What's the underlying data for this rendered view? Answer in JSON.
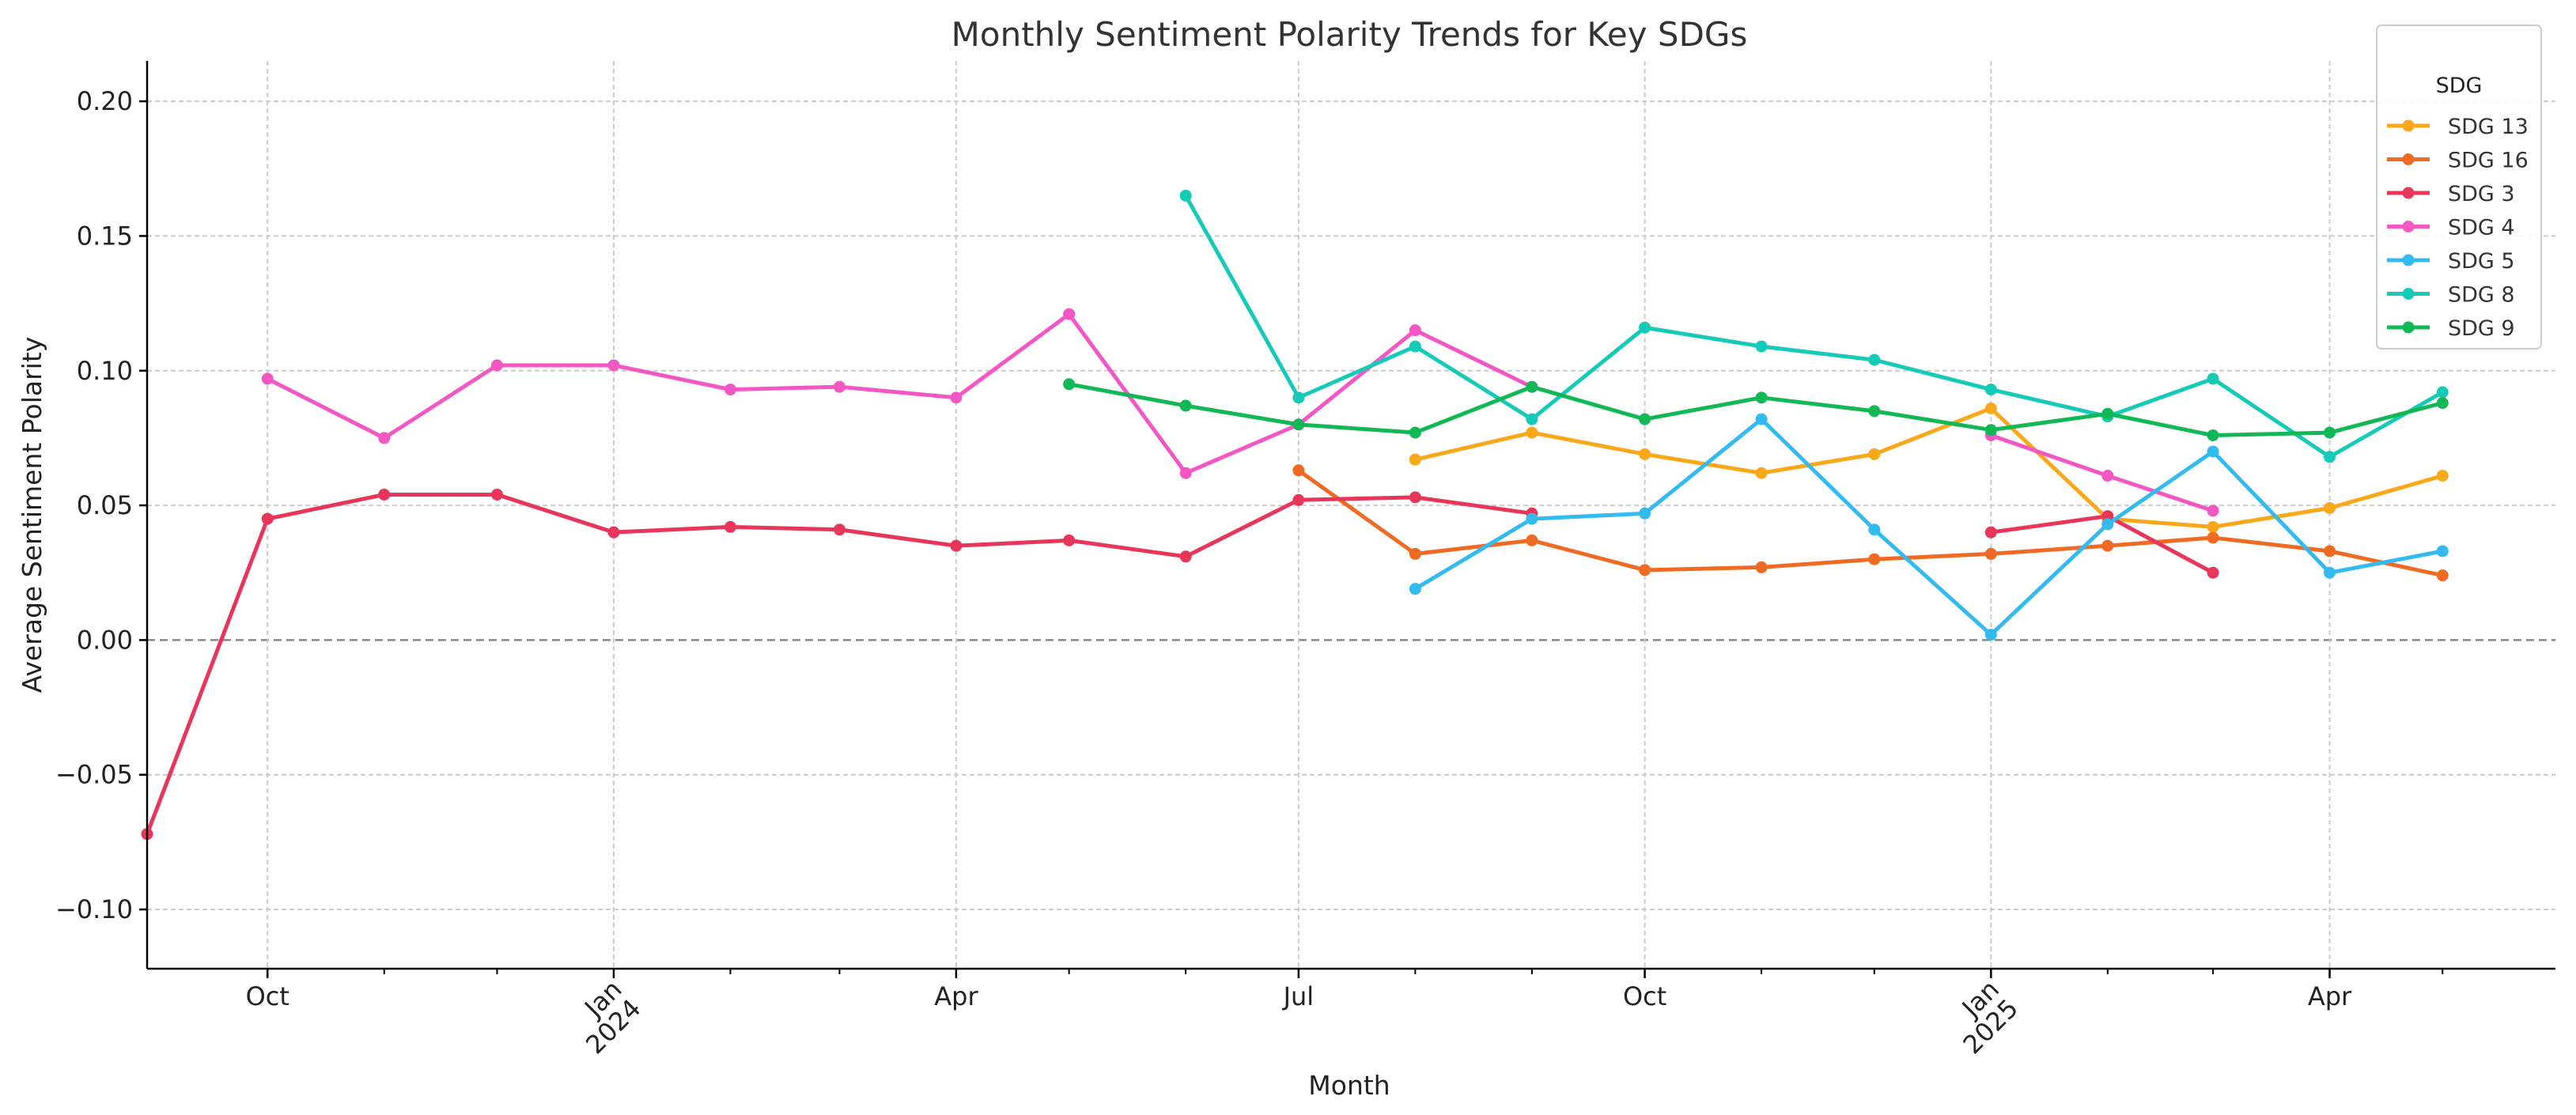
{
  "chart_data": {
    "type": "line",
    "title": "Monthly Sentiment Polarity Trends for Key SDGs",
    "xlabel": "Month",
    "ylabel": "Average Sentiment Polarity",
    "ylim": [
      -0.122,
      0.215
    ],
    "xlim": [
      "2023-08-30",
      "2025-05-31"
    ],
    "zero_line": true,
    "grid": true,
    "legend_title": "SDG",
    "legend_position": "upper right",
    "y_ticks": [
      {
        "value": 0.2,
        "label": "0.20"
      },
      {
        "value": 0.15,
        "label": "0.15"
      },
      {
        "value": 0.1,
        "label": "0.10"
      },
      {
        "value": 0.05,
        "label": "0.05"
      },
      {
        "value": 0.0,
        "label": "0.00"
      },
      {
        "value": -0.05,
        "label": "−0.05"
      },
      {
        "value": -0.1,
        "label": "−0.10"
      }
    ],
    "x_major_ticks": [
      {
        "date": "2023-10-01",
        "label": "Oct",
        "rotated": false
      },
      {
        "date": "2024-01-01",
        "label": "Jan",
        "sublabel": "2024",
        "rotated": true
      },
      {
        "date": "2024-04-01",
        "label": "Apr",
        "rotated": false
      },
      {
        "date": "2024-07-01",
        "label": "Jul",
        "rotated": false
      },
      {
        "date": "2024-10-01",
        "label": "Oct",
        "rotated": false
      },
      {
        "date": "2025-01-01",
        "label": "Jan",
        "sublabel": "2025",
        "rotated": true
      },
      {
        "date": "2025-04-01",
        "label": "Apr",
        "rotated": false
      }
    ],
    "x_minor_ticks": [
      "2023-11-01",
      "2023-12-01",
      "2024-02-01",
      "2024-03-01",
      "2024-05-01",
      "2024-06-01",
      "2024-08-01",
      "2024-09-01",
      "2024-11-01",
      "2024-12-01",
      "2025-02-01",
      "2025-03-01",
      "2025-05-01"
    ],
    "series": [
      {
        "name": "SDG 13",
        "color": "#f8a818",
        "points": [
          [
            "2024-08-01",
            0.067
          ],
          [
            "2024-09-01",
            0.077
          ],
          [
            "2024-10-01",
            0.069
          ],
          [
            "2024-11-01",
            0.062
          ],
          [
            "2024-12-01",
            0.069
          ],
          [
            "2025-01-01",
            0.086
          ],
          [
            "2025-02-01",
            0.045
          ],
          [
            "2025-03-01",
            0.042
          ],
          [
            "2025-04-01",
            0.049
          ],
          [
            "2025-05-01",
            0.061
          ]
        ]
      },
      {
        "name": "SDG 16",
        "color": "#ef6b24",
        "points": [
          [
            "2024-07-01",
            0.063
          ],
          [
            "2024-08-01",
            0.032
          ],
          [
            "2024-09-01",
            0.037
          ],
          [
            "2024-10-01",
            0.026
          ],
          [
            "2024-11-01",
            0.027
          ],
          [
            "2024-12-01",
            0.03
          ],
          [
            "2025-01-01",
            0.032
          ],
          [
            "2025-02-01",
            0.035
          ],
          [
            "2025-03-01",
            0.038
          ],
          [
            "2025-04-01",
            0.033
          ],
          [
            "2025-05-01",
            0.024
          ]
        ]
      },
      {
        "name": "SDG 3",
        "color": "#e8365a",
        "points": [
          [
            "2023-08-30",
            -0.072
          ],
          [
            "2023-10-01",
            0.045
          ],
          [
            "2023-11-01",
            0.054
          ],
          [
            "2023-12-01",
            0.054
          ],
          [
            "2024-01-01",
            0.04
          ],
          [
            "2024-02-01",
            0.042
          ],
          [
            "2024-03-01",
            0.041
          ],
          [
            "2024-04-01",
            0.035
          ],
          [
            "2024-05-01",
            0.037
          ],
          [
            "2024-06-01",
            0.031
          ],
          [
            "2024-07-01",
            0.052
          ],
          [
            "2024-08-01",
            0.053
          ],
          [
            "2024-09-01",
            0.047
          ],
          null,
          [
            "2025-01-01",
            0.04
          ],
          [
            "2025-02-01",
            0.046
          ],
          [
            "2025-03-01",
            0.025
          ]
        ]
      },
      {
        "name": "SDG 4",
        "color": "#f257c4",
        "points": [
          [
            "2023-10-01",
            0.097
          ],
          [
            "2023-11-01",
            0.075
          ],
          [
            "2023-12-01",
            0.102
          ],
          [
            "2024-01-01",
            0.102
          ],
          [
            "2024-02-01",
            0.093
          ],
          [
            "2024-03-01",
            0.094
          ],
          [
            "2024-04-01",
            0.09
          ],
          [
            "2024-05-01",
            0.121
          ],
          [
            "2024-06-01",
            0.062
          ],
          [
            "2024-07-01",
            0.08
          ],
          [
            "2024-08-01",
            0.115
          ],
          [
            "2024-09-01",
            0.094
          ],
          null,
          [
            "2025-01-01",
            0.076
          ],
          [
            "2025-02-01",
            0.061
          ],
          [
            "2025-03-01",
            0.048
          ]
        ]
      },
      {
        "name": "SDG 5",
        "color": "#33bbf0",
        "points": [
          [
            "2024-08-01",
            0.019
          ],
          [
            "2024-09-01",
            0.045
          ],
          [
            "2024-10-01",
            0.047
          ],
          [
            "2024-11-01",
            0.082
          ],
          [
            "2024-12-01",
            0.041
          ],
          [
            "2025-01-01",
            0.002
          ],
          [
            "2025-02-01",
            0.043
          ],
          [
            "2025-03-01",
            0.07
          ],
          [
            "2025-04-01",
            0.025
          ],
          [
            "2025-05-01",
            0.033
          ]
        ]
      },
      {
        "name": "SDG 8",
        "color": "#16cab8",
        "points": [
          [
            "2024-06-01",
            0.165
          ],
          [
            "2024-07-01",
            0.09
          ],
          [
            "2024-08-01",
            0.109
          ],
          [
            "2024-09-01",
            0.082
          ],
          [
            "2024-10-01",
            0.116
          ],
          [
            "2024-11-01",
            0.109
          ],
          [
            "2024-12-01",
            0.104
          ],
          [
            "2025-01-01",
            0.093
          ],
          [
            "2025-02-01",
            0.083
          ],
          [
            "2025-03-01",
            0.097
          ],
          [
            "2025-04-01",
            0.068
          ],
          [
            "2025-05-01",
            0.092
          ]
        ]
      },
      {
        "name": "SDG 9",
        "color": "#12b856",
        "points": [
          [
            "2024-05-01",
            0.095
          ],
          [
            "2024-06-01",
            0.087
          ],
          [
            "2024-07-01",
            0.08
          ],
          [
            "2024-08-01",
            0.077
          ],
          [
            "2024-09-01",
            0.094
          ],
          [
            "2024-10-01",
            0.082
          ],
          [
            "2024-11-01",
            0.09
          ],
          [
            "2024-12-01",
            0.085
          ],
          [
            "2025-01-01",
            0.078
          ],
          [
            "2025-02-01",
            0.084
          ],
          [
            "2025-03-01",
            0.076
          ],
          [
            "2025-04-01",
            0.077
          ],
          [
            "2025-05-01",
            0.088
          ]
        ]
      }
    ]
  }
}
